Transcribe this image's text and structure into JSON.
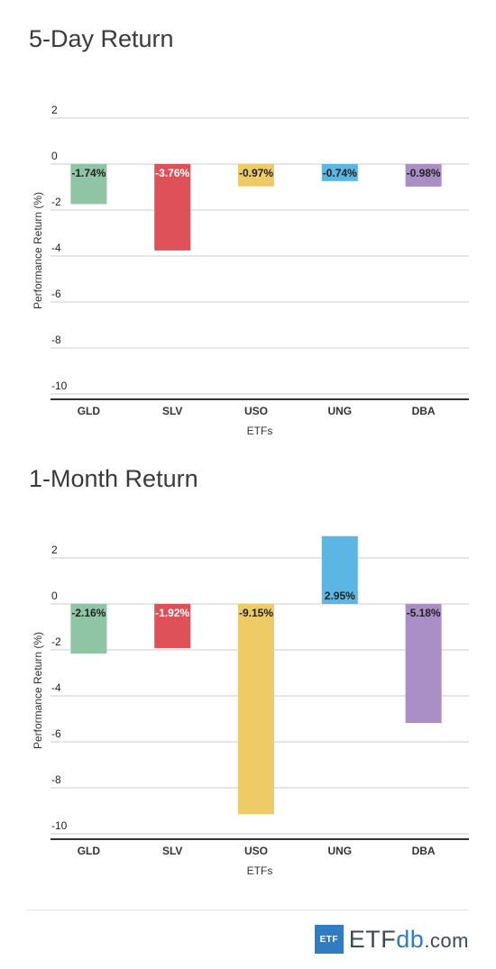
{
  "colors": {
    "gridline": "#cccccc",
    "baseline": "#333333",
    "GLD": "#8fc4a4",
    "SLV": "#de5158",
    "USO": "#efcb68",
    "UNG": "#5cb6e3",
    "DBA": "#a98fc6",
    "brand": "#2f7cc3"
  },
  "logo": {
    "box_label": "ETF",
    "wordmark_a": "ETF",
    "wordmark_b": "db",
    "wordmark_c": ".com"
  },
  "chart_data": [
    {
      "type": "bar",
      "title": "5-Day Return",
      "xlabel": "ETFs",
      "ylabel": "Performance Return (%)",
      "ylim": [
        -10,
        2
      ],
      "yticks": [
        2,
        0,
        -2,
        -4,
        -6,
        -8,
        -10
      ],
      "grid": true,
      "categories": [
        "GLD",
        "SLV",
        "USO",
        "UNG",
        "DBA"
      ],
      "values": [
        -1.74,
        -3.76,
        -0.97,
        -0.74,
        -0.98
      ],
      "data_labels": [
        "-1.74%",
        "-3.76%",
        "-0.97%",
        "-0.74%",
        "-0.98%"
      ]
    },
    {
      "type": "bar",
      "title": "1-Month Return",
      "xlabel": "ETFs",
      "ylabel": "Performance Return (%)",
      "ylim": [
        -10,
        2
      ],
      "yticks": [
        2,
        0,
        -2,
        -4,
        -6,
        -8,
        -10
      ],
      "grid": true,
      "categories": [
        "GLD",
        "SLV",
        "USO",
        "UNG",
        "DBA"
      ],
      "values": [
        -2.16,
        -1.92,
        -9.15,
        2.95,
        -5.18
      ],
      "data_labels": [
        "-2.16%",
        "-1.92%",
        "-9.15%",
        "2.95%",
        "-5.18%"
      ]
    }
  ]
}
